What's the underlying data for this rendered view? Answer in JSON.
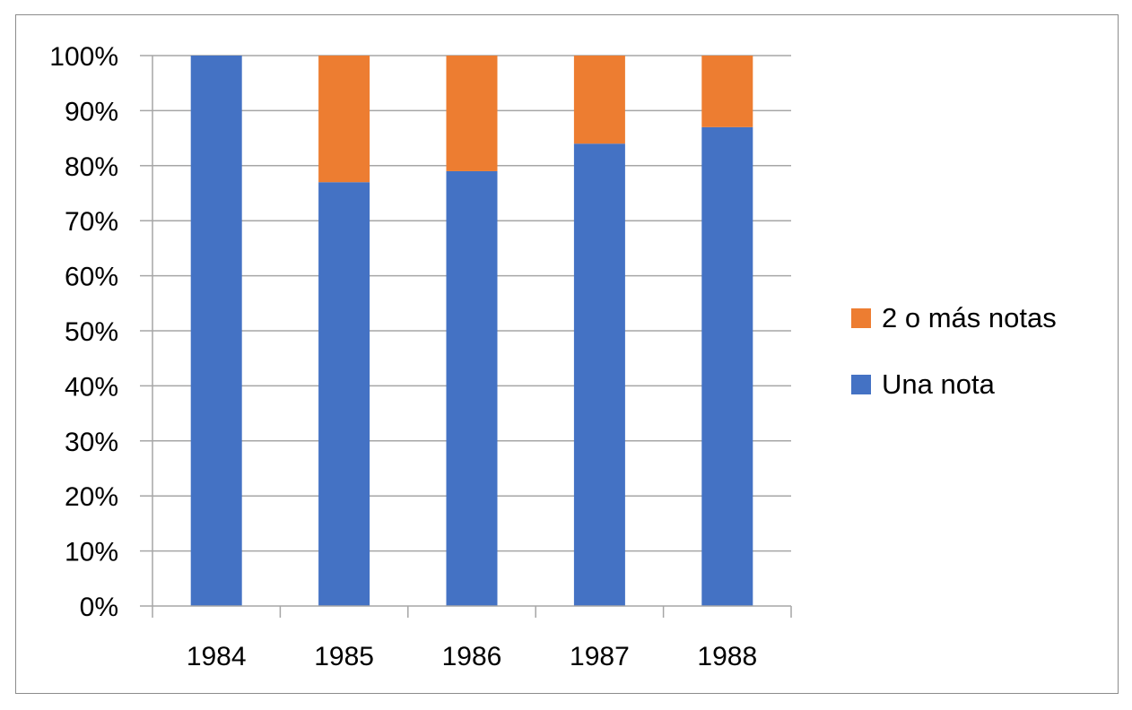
{
  "chart_data": {
    "type": "bar",
    "stacked": true,
    "categories": [
      "1984",
      "1985",
      "1986",
      "1987",
      "1988"
    ],
    "series": [
      {
        "name": "Una nota",
        "color": "#4472c4",
        "values": [
          100,
          77,
          79,
          84,
          87
        ]
      },
      {
        "name": "2 o más notas",
        "color": "#ed7d31",
        "values": [
          0,
          23,
          21,
          16,
          13
        ]
      }
    ],
    "y_ticks": [
      "0%",
      "10%",
      "20%",
      "30%",
      "40%",
      "50%",
      "60%",
      "70%",
      "80%",
      "90%",
      "100%"
    ],
    "ylim": [
      0,
      100
    ],
    "y_unit": "%",
    "grid": true,
    "legend_position": "right",
    "legend_order": [
      "2 o más notas",
      "Una nota"
    ]
  }
}
